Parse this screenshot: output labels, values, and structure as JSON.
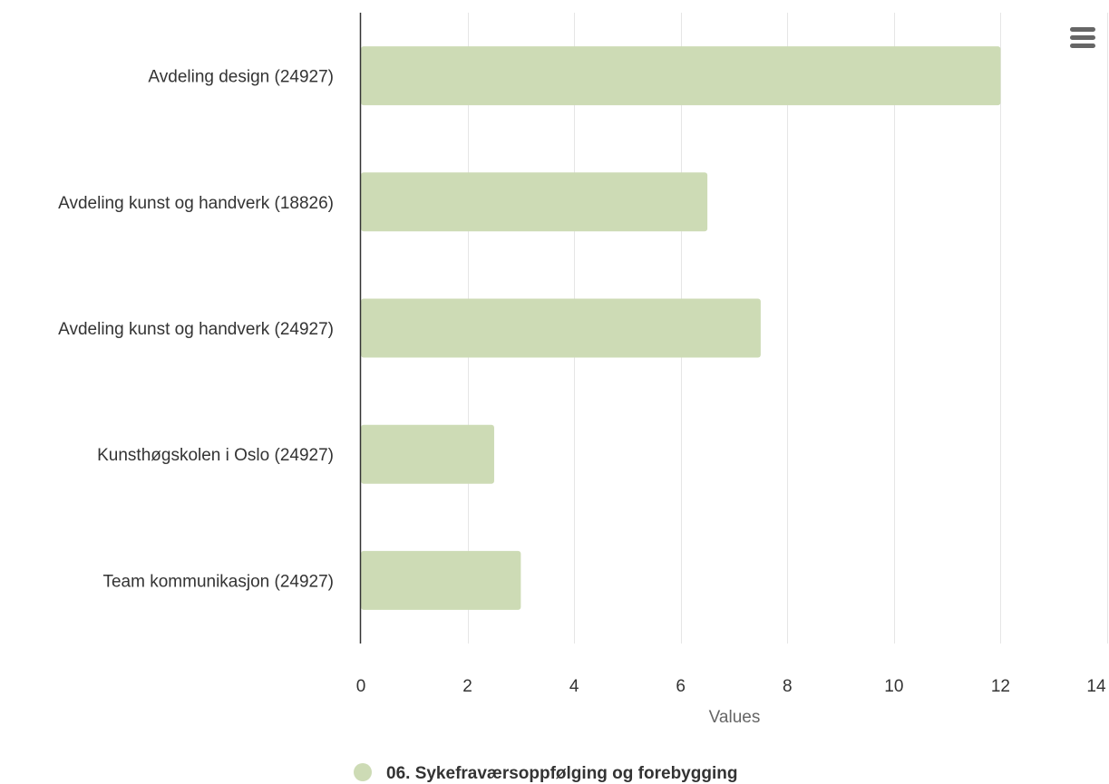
{
  "chart_data": {
    "type": "bar",
    "orientation": "horizontal",
    "categories": [
      "Avdeling design (24927)",
      "Avdeling kunst og handverk (18826)",
      "Avdeling kunst og handverk (24927)",
      "Kunsthøgskolen i Oslo (24927)",
      "Team kommunikasjon (24927)"
    ],
    "series": [
      {
        "name": "06. Sykefraværsoppfølging og forebygging",
        "color": "#cddbb5",
        "values": [
          12,
          6.5,
          7.5,
          2.5,
          3
        ]
      }
    ],
    "xlabel": "Values",
    "ylabel": "",
    "xlim": [
      0,
      14
    ],
    "xticks": [
      0,
      2,
      4,
      6,
      8,
      10,
      12,
      14
    ],
    "grid": true,
    "legend_position": "bottom-center"
  },
  "toolbar": {
    "menu_icon": "hamburger-menu-icon"
  },
  "colors": {
    "grid": "#e6e6e6",
    "axis": "#333333",
    "label": "#333333",
    "tick": "#333333",
    "axis_title": "#666666",
    "menu": "#666666"
  }
}
